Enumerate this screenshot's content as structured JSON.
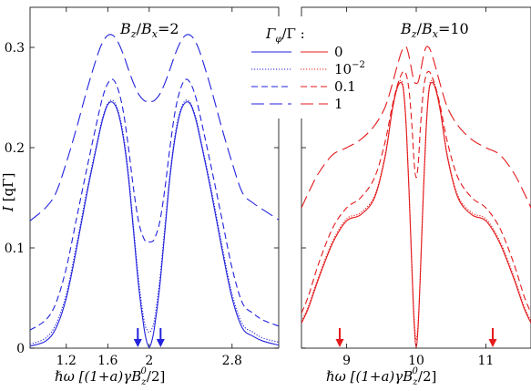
{
  "chart_data": [
    {
      "type": "line",
      "title": "B_z/B_x=2",
      "title_parts": [
        "B",
        "z",
        "/",
        "B",
        "x",
        "=2"
      ],
      "color": "#2222dd",
      "xlabel": "ℏω  [(1+a)γB_z^0/2]",
      "xlabel_parts": [
        "ℏω  [(1+a)γB",
        "z",
        "0",
        "/2]"
      ],
      "ylabel": "I [qΓ]",
      "ylabel_parts": [
        "I",
        " [qΓ]"
      ],
      "xlim": [
        0.85,
        3.25
      ],
      "ylim": [
        0,
        0.34
      ],
      "xticks": [
        "1.2",
        "1.6",
        "2",
        "2.8"
      ],
      "xtick_values": [
        1.2,
        1.6,
        2.0,
        2.8
      ],
      "yticks": [
        "0",
        "0.1",
        "0.2",
        "0.3"
      ],
      "ytick_values": [
        0,
        0.1,
        0.2,
        0.3
      ],
      "arrows_x": [
        1.89,
        2.11
      ],
      "x": [
        0.85,
        1.0,
        1.1,
        1.2,
        1.3,
        1.4,
        1.5,
        1.55,
        1.6,
        1.65,
        1.7,
        1.75,
        1.8,
        1.85,
        1.9,
        1.95,
        1.98,
        2.0,
        2.02,
        2.05,
        2.1,
        2.15,
        2.2,
        2.25,
        2.3,
        2.35,
        2.4,
        2.45,
        2.5,
        2.6,
        2.7,
        2.8,
        2.9,
        3.0,
        3.1,
        3.25
      ],
      "series": [
        {
          "name": "0",
          "dash": "solid",
          "values": [
            0.002,
            0.007,
            0.02,
            0.05,
            0.1,
            0.155,
            0.205,
            0.228,
            0.243,
            0.245,
            0.235,
            0.21,
            0.17,
            0.115,
            0.06,
            0.02,
            0.005,
            0.001,
            0.005,
            0.02,
            0.06,
            0.115,
            0.17,
            0.21,
            0.235,
            0.245,
            0.243,
            0.228,
            0.205,
            0.155,
            0.1,
            0.05,
            0.02,
            0.012,
            0.007,
            0.003
          ]
        },
        {
          "name": "10^-2",
          "dash": "dotted",
          "values": [
            0.004,
            0.01,
            0.024,
            0.054,
            0.104,
            0.158,
            0.207,
            0.23,
            0.244,
            0.247,
            0.237,
            0.213,
            0.174,
            0.12,
            0.066,
            0.028,
            0.018,
            0.016,
            0.018,
            0.028,
            0.066,
            0.12,
            0.174,
            0.213,
            0.237,
            0.247,
            0.244,
            0.23,
            0.207,
            0.158,
            0.104,
            0.054,
            0.024,
            0.016,
            0.01,
            0.006
          ]
        },
        {
          "name": "0.1",
          "dash": "short",
          "values": [
            0.018,
            0.028,
            0.045,
            0.08,
            0.13,
            0.18,
            0.228,
            0.25,
            0.264,
            0.268,
            0.258,
            0.236,
            0.2,
            0.158,
            0.125,
            0.109,
            0.106,
            0.106,
            0.106,
            0.109,
            0.125,
            0.158,
            0.2,
            0.236,
            0.258,
            0.268,
            0.264,
            0.25,
            0.228,
            0.18,
            0.13,
            0.08,
            0.045,
            0.035,
            0.028,
            0.022
          ]
        },
        {
          "name": "1",
          "dash": "long",
          "values": [
            0.127,
            0.14,
            0.155,
            0.185,
            0.22,
            0.258,
            0.292,
            0.305,
            0.312,
            0.312,
            0.305,
            0.293,
            0.278,
            0.264,
            0.253,
            0.247,
            0.246,
            0.245,
            0.246,
            0.247,
            0.253,
            0.264,
            0.278,
            0.293,
            0.305,
            0.312,
            0.312,
            0.305,
            0.292,
            0.258,
            0.22,
            0.185,
            0.155,
            0.145,
            0.138,
            0.128
          ]
        }
      ]
    },
    {
      "type": "line",
      "title": "B_z/B_x=10",
      "title_parts": [
        "B",
        "z",
        "/",
        "B",
        "x",
        "=10"
      ],
      "color": "#e41a1c",
      "xlabel": "ℏω  [(1+a)γB_z^0/2]",
      "xlabel_parts": [
        "ℏω  [(1+a)γB",
        "z",
        "0",
        "/2]"
      ],
      "xlim": [
        8.35,
        11.65
      ],
      "ylim": [
        0,
        0.34
      ],
      "xticks": [
        "9",
        "10",
        "11"
      ],
      "xtick_values": [
        9,
        10,
        11
      ],
      "arrows_x": [
        8.9,
        11.1
      ],
      "x": [
        8.35,
        8.45,
        8.6,
        8.8,
        9.0,
        9.2,
        9.4,
        9.55,
        9.65,
        9.72,
        9.78,
        9.82,
        9.86,
        9.9,
        9.94,
        9.97,
        10.0,
        10.03,
        10.06,
        10.1,
        10.14,
        10.18,
        10.22,
        10.28,
        10.35,
        10.45,
        10.6,
        10.8,
        11.0,
        11.2,
        11.4,
        11.55,
        11.65
      ],
      "series": [
        {
          "name": "0",
          "dash": "solid",
          "values": [
            0.025,
            0.04,
            0.07,
            0.105,
            0.127,
            0.133,
            0.15,
            0.19,
            0.235,
            0.258,
            0.265,
            0.255,
            0.215,
            0.15,
            0.075,
            0.025,
            0.001,
            0.025,
            0.075,
            0.15,
            0.215,
            0.255,
            0.265,
            0.258,
            0.235,
            0.19,
            0.15,
            0.133,
            0.127,
            0.105,
            0.07,
            0.04,
            0.025
          ]
        },
        {
          "name": "10^-2",
          "dash": "dotted",
          "values": [
            0.027,
            0.042,
            0.072,
            0.107,
            0.129,
            0.135,
            0.152,
            0.192,
            0.237,
            0.26,
            0.267,
            0.257,
            0.217,
            0.152,
            0.078,
            0.03,
            0.008,
            0.03,
            0.078,
            0.152,
            0.217,
            0.257,
            0.267,
            0.26,
            0.237,
            0.192,
            0.152,
            0.135,
            0.129,
            0.107,
            0.072,
            0.042,
            0.027
          ]
        },
        {
          "name": "0.1",
          "dash": "short",
          "values": [
            0.035,
            0.052,
            0.085,
            0.12,
            0.14,
            0.15,
            0.17,
            0.205,
            0.24,
            0.26,
            0.272,
            0.276,
            0.272,
            0.255,
            0.22,
            0.185,
            0.17,
            0.185,
            0.22,
            0.255,
            0.272,
            0.276,
            0.272,
            0.26,
            0.24,
            0.205,
            0.17,
            0.15,
            0.14,
            0.12,
            0.085,
            0.052,
            0.035
          ]
        },
        {
          "name": "1",
          "dash": "long",
          "values": [
            0.14,
            0.155,
            0.175,
            0.193,
            0.2,
            0.208,
            0.222,
            0.24,
            0.262,
            0.28,
            0.294,
            0.3,
            0.3,
            0.29,
            0.275,
            0.266,
            0.264,
            0.266,
            0.275,
            0.29,
            0.3,
            0.3,
            0.294,
            0.28,
            0.262,
            0.24,
            0.222,
            0.208,
            0.2,
            0.193,
            0.175,
            0.155,
            0.14
          ]
        }
      ]
    }
  ],
  "legend": {
    "header_parts": [
      "Γ",
      "φ",
      "/Γ :"
    ],
    "labels": [
      "0",
      "10",
      "0.1",
      "1"
    ],
    "superscript": "−2",
    "blue": "#2222dd",
    "red": "#e41a1c"
  }
}
